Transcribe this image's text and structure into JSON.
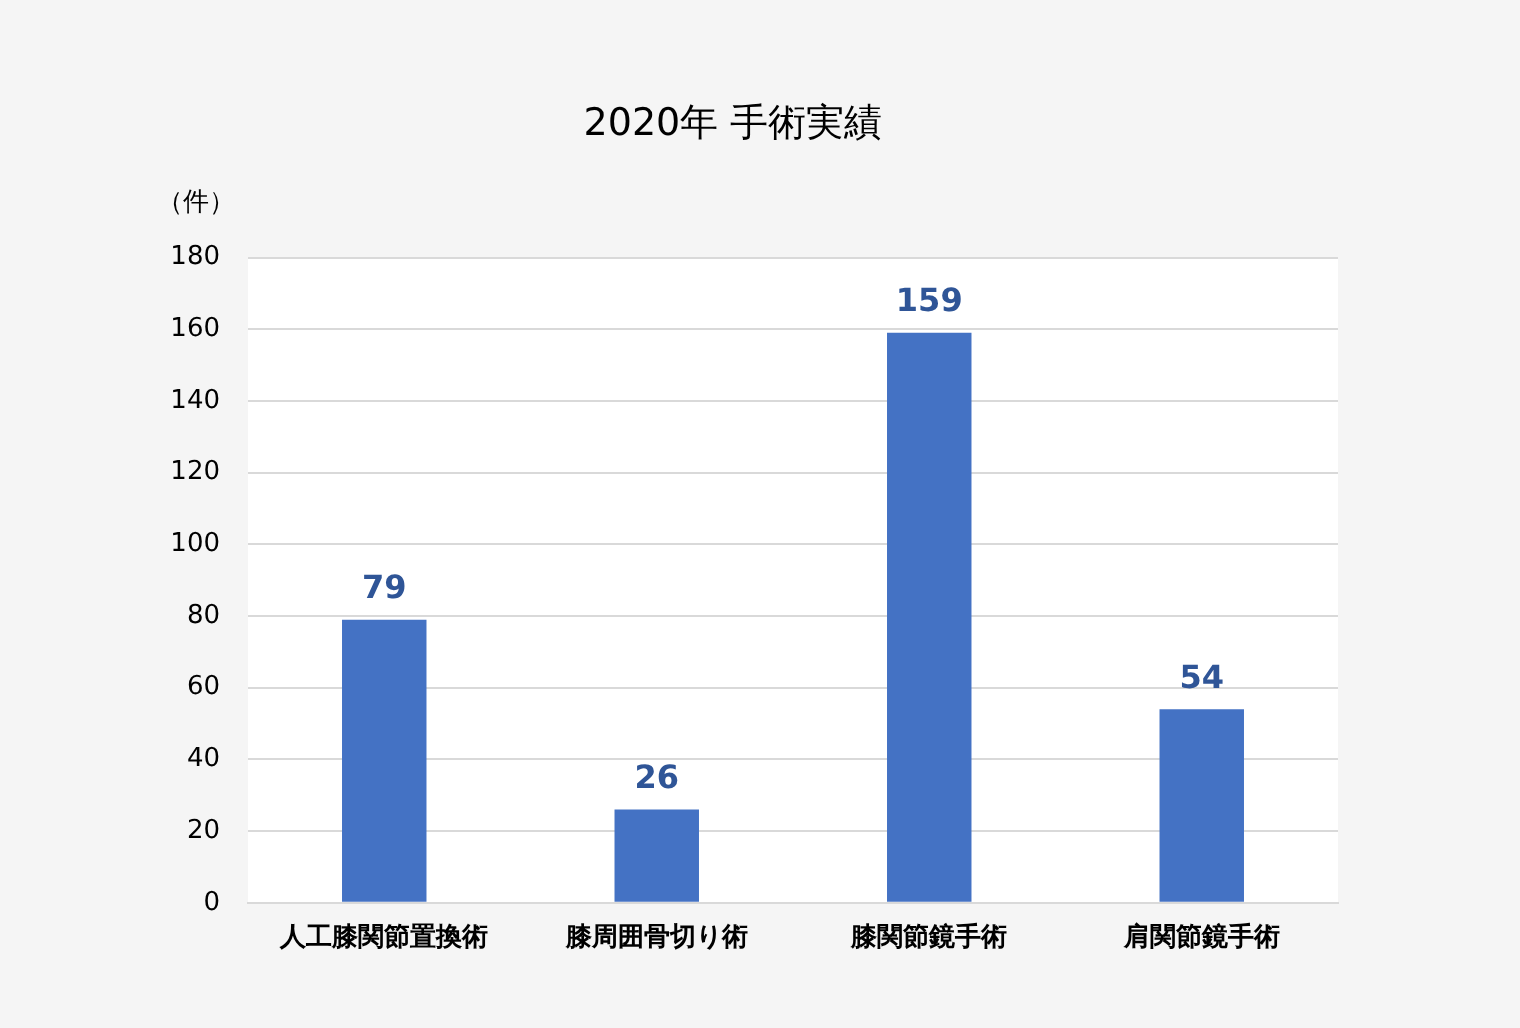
{
  "chart_data": {
    "type": "bar",
    "title": "2020年 手術実績",
    "ylabel": "（件）",
    "categories": [
      "人工膝関節置換術",
      "膝周囲骨切り術",
      "膝関節鏡手術",
      "肩関節鏡手術"
    ],
    "values": [
      79,
      26,
      159,
      54
    ],
    "color": "#4472c4",
    "ylim": [
      0,
      180
    ],
    "yticks": [
      0,
      20,
      40,
      60,
      80,
      100,
      120,
      140,
      160,
      180
    ],
    "grid": "y",
    "data_labels": true
  }
}
